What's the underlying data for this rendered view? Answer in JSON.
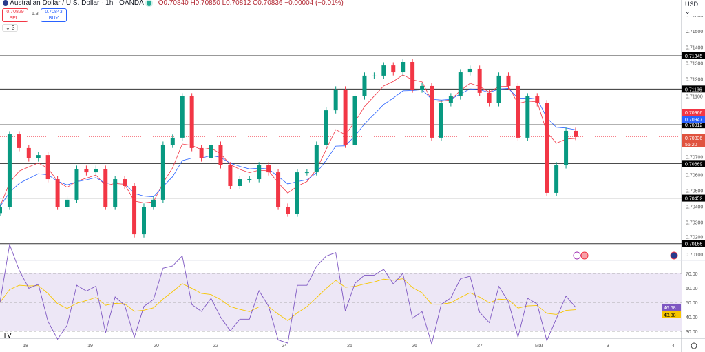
{
  "header": {
    "title": "Australian Dollar / U.S. Dollar · 1h · OANDA",
    "ohlc": "O0.70840 H0.70850 L0.70812 C0.70836 −0.00004 (−0.01%)",
    "sell_price": "0.70829",
    "sell_label": "SELL",
    "spread": "1.3",
    "buy_price": "0.70843",
    "buy_label": "BUY",
    "collapse": "3",
    "currency": "USD"
  },
  "colors": {
    "up": "#089981",
    "down": "#f23645",
    "ema_fast": "#f23645",
    "ema_slow": "#2962ff",
    "rsi": "#7e57c2",
    "rsi_ma": "#f7c600",
    "rsi_band": "#ede7f6"
  },
  "chart_data": {
    "type": "candlestick",
    "ylim": [
      0.701,
      0.716
    ],
    "y_ticks": [
      "0.71600",
      "0.71500",
      "0.71400",
      "0.71300",
      "0.71200",
      "0.71100",
      "0.70700",
      "0.70600",
      "0.70500",
      "0.70400",
      "0.70300",
      "0.70200",
      "0.70100"
    ],
    "x_ticks": [
      "18",
      "19",
      "20",
      "22",
      "24",
      "25",
      "26",
      "27",
      "Mar",
      "3",
      "4"
    ],
    "closes": [
      0.70398,
      0.70852,
      0.70766,
      0.70701,
      0.70722,
      0.70571,
      0.70398,
      0.70442,
      0.70636,
      0.70614,
      0.70636,
      0.70398,
      0.70571,
      0.70528,
      0.70225,
      0.70398,
      0.70442,
      0.70787,
      0.70831,
      0.7109,
      0.70766,
      0.70701,
      0.70787,
      0.70658,
      0.70528,
      0.70571,
      0.70571,
      0.70658,
      0.70614,
      0.70398,
      0.70355,
      0.70614,
      0.70614,
      0.70787,
      0.71003,
      0.71133,
      0.70787,
      0.7109,
      0.7122,
      0.7122,
      0.71284,
      0.71241,
      0.71306,
      0.71133,
      0.71155,
      0.70831,
      0.71047,
      0.7109,
      0.71241,
      0.71263,
      0.71112,
      0.71047,
      0.7122,
      0.71155,
      0.70831,
      0.7109,
      0.71047,
      0.70485,
      0.70658,
      0.70874,
      0.70836
    ],
    "levels": [
      "0.71345",
      "0.71136",
      "0.70912",
      "0.70669",
      "0.70452",
      "0.70166"
    ],
    "last_price": "0.70836",
    "countdown": "55:20",
    "ema_fast_value": "0.70966",
    "ema_slow_value": "0.70947",
    "rsi": {
      "levels": [
        "70.00",
        "60.00",
        "50.00",
        "40.00",
        "30.00"
      ],
      "value": "46.68",
      "ma_value": "43.88",
      "upper": 70,
      "lower": 30
    }
  }
}
